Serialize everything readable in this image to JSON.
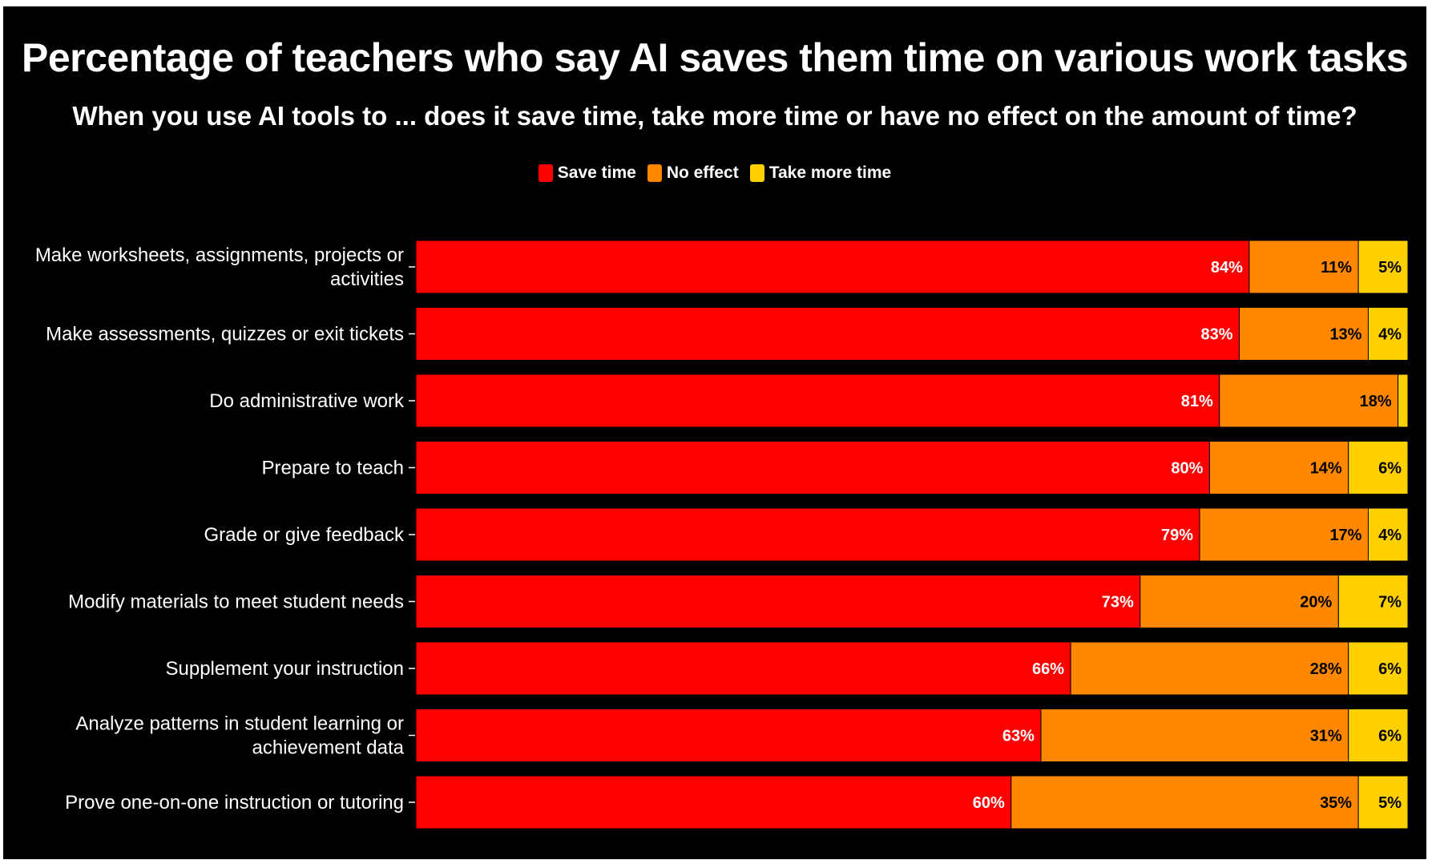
{
  "chart_data": {
    "type": "bar",
    "orientation": "horizontal",
    "stacked": true,
    "title": "Percentage of teachers who say AI saves them time on various work tasks",
    "subtitle": "When you use AI tools to ... does it save time, take more time or have no effect on the amount of time?",
    "legend_position": "top-center",
    "grid": false,
    "xlim": [
      0,
      100
    ],
    "categories": [
      [
        "Make worksheets, assignments, projects or",
        "activities"
      ],
      [
        "Make assessments, quizzes or exit tickets"
      ],
      [
        "Do administrative work"
      ],
      [
        "Prepare to teach"
      ],
      [
        "Grade or give feedback"
      ],
      [
        "Modify materials to meet student needs"
      ],
      [
        "Supplement your instruction"
      ],
      [
        "Analyze patterns in student learning or",
        "achievement data"
      ],
      [
        "Prove one-on-one instruction or tutoring"
      ]
    ],
    "series": [
      {
        "name": "Save time",
        "color": "#ff0000",
        "label_color": "#ffffff",
        "values": [
          84,
          83,
          81,
          80,
          79,
          73,
          66,
          63,
          60
        ],
        "labels": [
          "84%",
          "83%",
          "81%",
          "80%",
          "79%",
          "73%",
          "66%",
          "63%",
          "60%"
        ]
      },
      {
        "name": "No effect",
        "color": "#ff8800",
        "label_color": "#000000",
        "values": [
          11,
          13,
          18,
          14,
          17,
          20,
          28,
          31,
          35
        ],
        "labels": [
          "11%",
          "13%",
          "18%",
          "14%",
          "17%",
          "20%",
          "28%",
          "31%",
          "35%"
        ]
      },
      {
        "name": "Take more time",
        "color": "#ffd000",
        "label_color": "#000000",
        "values": [
          5,
          4,
          1,
          6,
          4,
          7,
          6,
          6,
          5
        ],
        "labels": [
          "5%",
          "4%",
          "",
          "6%",
          "4%",
          "7%",
          "6%",
          "6%",
          "5%"
        ]
      }
    ]
  }
}
